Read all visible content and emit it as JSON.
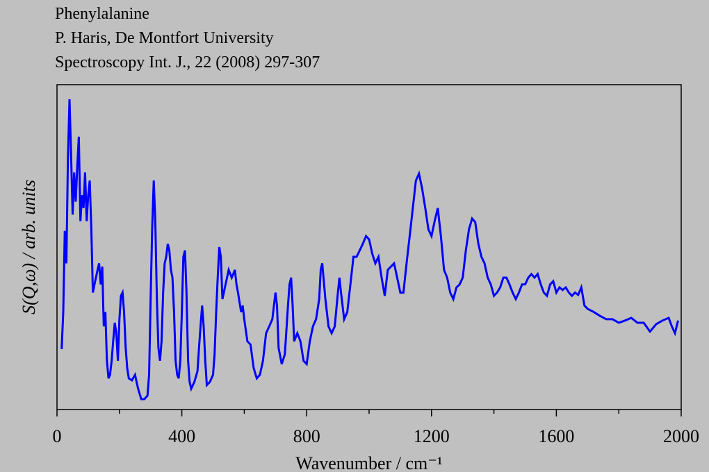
{
  "chart_data": {
    "type": "line",
    "title": "Phenylalanine",
    "subtitle": "P. Haris, De Montfort University",
    "source": "Spectroscopy Int. J., 22 (2008) 297-307",
    "x_label": "Wavenumber / cm⁻¹",
    "y_label": "S(Q,ω) / arb. units",
    "xlim": [
      0,
      2000
    ],
    "ylim": [
      0,
      100
    ],
    "xticks": [
      0,
      400,
      800,
      1200,
      1600,
      2000
    ],
    "xminorticks": [
      200,
      600,
      1000,
      1400,
      1800
    ],
    "grid": false,
    "series": [
      {
        "color": "#0000ff",
        "x": [
          15,
          20,
          25,
          30,
          35,
          40,
          45,
          50,
          55,
          60,
          65,
          70,
          75,
          80,
          85,
          90,
          95,
          100,
          105,
          110,
          115,
          120,
          130,
          135,
          140,
          145,
          150,
          155,
          160,
          165,
          170,
          175,
          180,
          185,
          190,
          195,
          200,
          205,
          210,
          215,
          220,
          225,
          230,
          240,
          250,
          255,
          260,
          270,
          280,
          290,
          295,
          300,
          305,
          310,
          315,
          320,
          325,
          330,
          335,
          340,
          345,
          350,
          355,
          360,
          365,
          370,
          375,
          380,
          385,
          390,
          395,
          400,
          405,
          410,
          415,
          420,
          425,
          430,
          440,
          450,
          455,
          460,
          465,
          470,
          475,
          480,
          490,
          500,
          505,
          510,
          515,
          520,
          525,
          530,
          540,
          550,
          560,
          570,
          575,
          580,
          590,
          595,
          600,
          610,
          620,
          630,
          640,
          650,
          660,
          670,
          680,
          690,
          700,
          705,
          710,
          720,
          730,
          740,
          745,
          750,
          755,
          760,
          770,
          780,
          790,
          800,
          810,
          820,
          830,
          840,
          845,
          850,
          860,
          870,
          880,
          890,
          900,
          905,
          910,
          920,
          930,
          940,
          950,
          960,
          970,
          980,
          990,
          1000,
          1010,
          1020,
          1030,
          1040,
          1050,
          1060,
          1070,
          1080,
          1090,
          1100,
          1110,
          1120,
          1130,
          1140,
          1150,
          1160,
          1170,
          1180,
          1190,
          1200,
          1210,
          1220,
          1230,
          1240,
          1250,
          1260,
          1270,
          1280,
          1290,
          1300,
          1310,
          1320,
          1330,
          1340,
          1350,
          1360,
          1370,
          1380,
          1390,
          1400,
          1410,
          1420,
          1430,
          1440,
          1450,
          1460,
          1470,
          1480,
          1490,
          1500,
          1510,
          1520,
          1530,
          1540,
          1550,
          1560,
          1570,
          1580,
          1590,
          1600,
          1610,
          1620,
          1630,
          1640,
          1650,
          1660,
          1670,
          1680,
          1690,
          1700,
          1720,
          1740,
          1760,
          1780,
          1800,
          1820,
          1840,
          1860,
          1880,
          1900,
          1920,
          1940,
          1960,
          1970,
          1980,
          1990
        ],
        "values": [
          18.6,
          30,
          55,
          45,
          77,
          95.5,
          79,
          60,
          73,
          64,
          75,
          84,
          58,
          66,
          62,
          73,
          58,
          66,
          70.5,
          55.5,
          36,
          38.5,
          43,
          45,
          38.5,
          44,
          25.6,
          30,
          15,
          9.6,
          10.7,
          15,
          21,
          26.7,
          23.5,
          15,
          27.8,
          35,
          36,
          30,
          19,
          12.8,
          9.6,
          9,
          10.7,
          8.5,
          6.4,
          3.2,
          3.2,
          4.3,
          10.7,
          34,
          55.5,
          70.5,
          58,
          34,
          19,
          15,
          21,
          36,
          45,
          47,
          51,
          49,
          43,
          40.6,
          30,
          15,
          10.7,
          9.6,
          15,
          30,
          47,
          49,
          36,
          15,
          8.5,
          6.4,
          8.5,
          11.8,
          19,
          25.6,
          32,
          25.6,
          15,
          7.5,
          8.5,
          10.7,
          17,
          30,
          40.6,
          50,
          47,
          34,
          38.5,
          43,
          40.6,
          43,
          38.5,
          36,
          30,
          32,
          27.8,
          21,
          20,
          12.8,
          9.6,
          10.7,
          15,
          23.5,
          25.6,
          27.8,
          36,
          32,
          19,
          14,
          17,
          32,
          38.5,
          40.6,
          32,
          21,
          23.5,
          21,
          15,
          14,
          21,
          25.6,
          27.8,
          34,
          43,
          45,
          34,
          25.6,
          23.5,
          25.6,
          36,
          40.6,
          36,
          27.8,
          30,
          38.5,
          47,
          47,
          49,
          51,
          53.4,
          52.4,
          48,
          45,
          47,
          40.6,
          35,
          43,
          44,
          45,
          40.6,
          36,
          36,
          45,
          53.4,
          62,
          70.5,
          72.6,
          68,
          62,
          55.5,
          53.4,
          58,
          62,
          53.4,
          43,
          40.6,
          36,
          34,
          37.6,
          38.5,
          40.6,
          49,
          55.5,
          58.8,
          57.7,
          51,
          47,
          45,
          40.6,
          38.5,
          35,
          36,
          37.6,
          40.6,
          40.6,
          38.5,
          36,
          34,
          36,
          38.5,
          38.5,
          40.6,
          41.7,
          40.6,
          41.7,
          38.5,
          36,
          35,
          38.5,
          39.5,
          36,
          37.6,
          36.8,
          37.6,
          36,
          35,
          36,
          35.3,
          37.6,
          32,
          31,
          30,
          28.8,
          27.8,
          27.8,
          26.7,
          27.4,
          28.2,
          26.7,
          26.7,
          24,
          26.3,
          27.4,
          28.2,
          25.6,
          23.5,
          27.4
        ]
      }
    ]
  }
}
